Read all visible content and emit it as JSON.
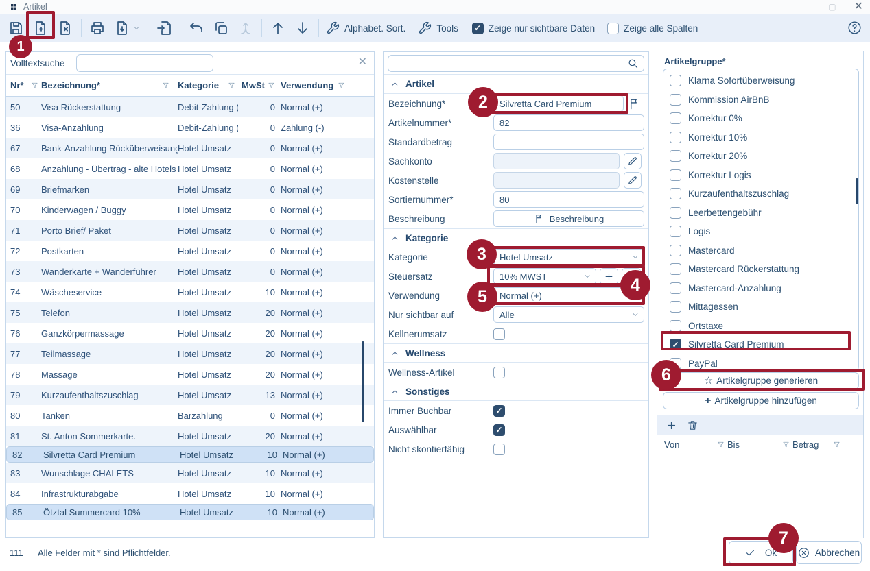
{
  "window": {
    "title": "Artikel"
  },
  "colors": {
    "annotation_red": "#9f1b30",
    "accent_blue": "#2e567d",
    "selection_blue": "#cfe1f6",
    "toolbar_bg": "#e8eff9"
  },
  "toolbar": {
    "icons": [
      "save",
      "new-document",
      "delete-document",
      "print",
      "export-document",
      "import-document",
      "undo",
      "copy",
      "merge",
      "move-up",
      "move-down"
    ],
    "sort_label": "Alphabet. Sort.",
    "tools_label": "Tools",
    "show_visible": {
      "label": "Zeige nur sichtbare Daten",
      "checked": true
    },
    "show_columns": {
      "label": "Zeige alle Spalten",
      "checked": false
    }
  },
  "left_panel": {
    "search_label": "Volltextsuche",
    "search_value": "",
    "columns": [
      "Nr*",
      "Bezeichnung*",
      "Kategorie",
      "MwSt",
      "Verwendung"
    ],
    "rows": [
      {
        "nr": "50",
        "bezeichnung": "Visa Rückerstattung",
        "kategorie": "Debit-Zahlung (K",
        "mwst": "0",
        "verwendung": "Normal (+)",
        "selected": false
      },
      {
        "nr": "36",
        "bezeichnung": "Visa-Anzahlung",
        "kategorie": "Debit-Zahlung (K",
        "mwst": "0",
        "verwendung": "Zahlung (-)",
        "selected": false
      },
      {
        "nr": "67",
        "bezeichnung": "Bank-Anzahlung Rücküberweisung",
        "kategorie": "Hotel Umsatz",
        "mwst": "0",
        "verwendung": "Normal (+)",
        "selected": false
      },
      {
        "nr": "68",
        "bezeichnung": "Anzahlung - Übertrag - alte Hotels",
        "kategorie": "Hotel Umsatz",
        "mwst": "0",
        "verwendung": "Normal (+)",
        "selected": false
      },
      {
        "nr": "69",
        "bezeichnung": "Briefmarken",
        "kategorie": "Hotel Umsatz",
        "mwst": "0",
        "verwendung": "Normal (+)",
        "selected": false
      },
      {
        "nr": "70",
        "bezeichnung": "Kinderwagen / Buggy",
        "kategorie": "Hotel Umsatz",
        "mwst": "0",
        "verwendung": "Normal (+)",
        "selected": false
      },
      {
        "nr": "71",
        "bezeichnung": "Porto Brief/ Paket",
        "kategorie": "Hotel Umsatz",
        "mwst": "0",
        "verwendung": "Normal (+)",
        "selected": false
      },
      {
        "nr": "72",
        "bezeichnung": "Postkarten",
        "kategorie": "Hotel Umsatz",
        "mwst": "0",
        "verwendung": "Normal (+)",
        "selected": false
      },
      {
        "nr": "73",
        "bezeichnung": "Wanderkarte + Wanderführer",
        "kategorie": "Hotel Umsatz",
        "mwst": "0",
        "verwendung": "Normal (+)",
        "selected": false
      },
      {
        "nr": "74",
        "bezeichnung": "Wäscheservice",
        "kategorie": "Hotel Umsatz",
        "mwst": "10",
        "verwendung": "Normal (+)",
        "selected": false
      },
      {
        "nr": "75",
        "bezeichnung": "Telefon",
        "kategorie": "Hotel Umsatz",
        "mwst": "20",
        "verwendung": "Normal (+)",
        "selected": false
      },
      {
        "nr": "76",
        "bezeichnung": "Ganzkörpermassage",
        "kategorie": "Hotel Umsatz",
        "mwst": "20",
        "verwendung": "Normal (+)",
        "selected": false
      },
      {
        "nr": "77",
        "bezeichnung": "Teilmassage",
        "kategorie": "Hotel Umsatz",
        "mwst": "20",
        "verwendung": "Normal (+)",
        "selected": false
      },
      {
        "nr": "78",
        "bezeichnung": "Massage",
        "kategorie": "Hotel Umsatz",
        "mwst": "20",
        "verwendung": "Normal (+)",
        "selected": false
      },
      {
        "nr": "79",
        "bezeichnung": "Kurzaufenthaltszuschlag",
        "kategorie": "Hotel Umsatz",
        "mwst": "13",
        "verwendung": "Normal (+)",
        "selected": false
      },
      {
        "nr": "80",
        "bezeichnung": "Tanken",
        "kategorie": "Barzahlung",
        "mwst": "0",
        "verwendung": "Normal (+)",
        "selected": false
      },
      {
        "nr": "81",
        "bezeichnung": "St. Anton Sommerkarte.",
        "kategorie": "Hotel Umsatz",
        "mwst": "20",
        "verwendung": "Normal (+)",
        "selected": false
      },
      {
        "nr": "82",
        "bezeichnung": "Silvretta Card Premium",
        "kategorie": "Hotel Umsatz",
        "mwst": "10",
        "verwendung": "Normal (+)",
        "selected": true
      },
      {
        "nr": "83",
        "bezeichnung": "Wunschlage CHALETS",
        "kategorie": "Hotel Umsatz",
        "mwst": "10",
        "verwendung": "Normal (+)",
        "selected": false
      },
      {
        "nr": "84",
        "bezeichnung": "Infrastrukturabgabe",
        "kategorie": "Hotel Umsatz",
        "mwst": "10",
        "verwendung": "Normal (+)",
        "selected": false
      },
      {
        "nr": "85",
        "bezeichnung": "Ötztal Summercard 10%",
        "kategorie": "Hotel Umsatz",
        "mwst": "10",
        "verwendung": "Normal (+)",
        "selected": true
      }
    ]
  },
  "form_panel": {
    "search_value": "",
    "sections": {
      "artikel": "Artikel",
      "kategorie": "Kategorie",
      "wellness": "Wellness",
      "sonstiges": "Sonstiges"
    },
    "labels": {
      "bezeichnung": "Bezeichnung*",
      "artikelnummer": "Artikelnummer*",
      "standardbetrag": "Standardbetrag",
      "sachkonto": "Sachkonto",
      "kostenstelle": "Kostenstelle",
      "sortiernummer": "Sortiernummer*",
      "beschreibung": "Beschreibung",
      "kategorie": "Kategorie",
      "steuersatz": "Steuersatz",
      "verwendung": "Verwendung",
      "nur_sichtbar": "Nur sichtbar auf",
      "kellnerumsatz": "Kellnerumsatz",
      "wellness_artikel": "Wellness-Artikel",
      "immer_buchbar": "Immer Buchbar",
      "auswaehlbar": "Auswählbar",
      "nicht_skontierfaehig": "Nicht skontierfähig"
    },
    "values": {
      "bezeichnung": "Silvretta Card Premium",
      "artikelnummer": "82",
      "standardbetrag": "",
      "sachkonto": "",
      "kostenstelle": "",
      "sortiernummer": "80",
      "kategorie": "Hotel Umsatz",
      "steuersatz": "10% MWST",
      "verwendung": "Normal (+)",
      "nur_sichtbar": "Alle"
    },
    "checks": {
      "kellnerumsatz": false,
      "wellness_artikel": false,
      "immer_buchbar": true,
      "auswaehlbar": true,
      "nicht_skontierfaehig": false
    },
    "beschreibung_button": "Beschreibung"
  },
  "group_panel": {
    "title": "Artikelgruppe*",
    "items": [
      {
        "label": "Klarna Sofortüberweisung",
        "checked": false
      },
      {
        "label": "Kommission AirBnB",
        "checked": false
      },
      {
        "label": "Korrektur 0%",
        "checked": false
      },
      {
        "label": "Korrektur 10%",
        "checked": false
      },
      {
        "label": "Korrektur 20%",
        "checked": false
      },
      {
        "label": "Korrektur Logis",
        "checked": false
      },
      {
        "label": "Kurzaufenthaltszuschlag",
        "checked": false
      },
      {
        "label": "Leerbettengebühr",
        "checked": false
      },
      {
        "label": "Logis",
        "checked": false
      },
      {
        "label": "Mastercard",
        "checked": false
      },
      {
        "label": "Mastercard Rückerstattung",
        "checked": false
      },
      {
        "label": "Mastercard-Anzahlung",
        "checked": false
      },
      {
        "label": "Mittagessen",
        "checked": false
      },
      {
        "label": "Ortstaxe",
        "checked": false
      },
      {
        "label": "Silvretta Card Premium",
        "checked": true
      },
      {
        "label": "PayPal",
        "checked": false
      }
    ],
    "generate_button": "Artikelgruppe generieren",
    "generate_star": "☆",
    "add_button": "Artikelgruppe hinzufügen",
    "add_plus": "+",
    "range_columns": [
      "Von",
      "Bis",
      "Betrag"
    ]
  },
  "footer": {
    "count": "111",
    "note": "Alle Felder mit * sind Pflichtfelder.",
    "ok_label": "Ok",
    "cancel_label": "Abbrechen"
  },
  "annotations": {
    "labels": [
      "1",
      "2",
      "3",
      "4",
      "5",
      "6",
      "7"
    ]
  }
}
